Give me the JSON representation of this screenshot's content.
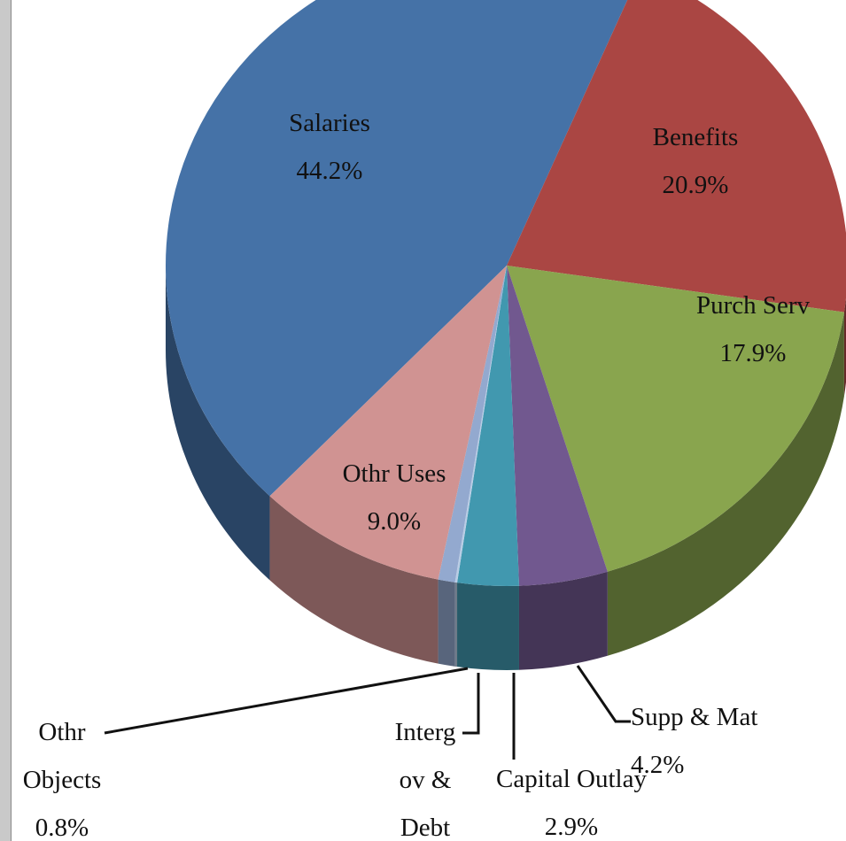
{
  "chart_data": {
    "type": "pie",
    "categories": [
      "Salaries",
      "Benefits",
      "Purch Serv",
      "Supp & Mat",
      "Capital Outlay",
      "Intergov & Debt",
      "Othr Objects",
      "Othr Uses"
    ],
    "values": [
      44.2,
      20.9,
      17.9,
      4.2,
      2.9,
      0.1,
      0.8,
      9.0
    ],
    "value_labels": [
      "44.2%",
      "20.9%",
      "17.9%",
      "4.2%",
      "2.9%",
      null,
      "0.8%",
      "9.0%"
    ],
    "colors": [
      "#4572a7",
      "#aa4643",
      "#89a54e",
      "#71588f",
      "#4198af",
      "#b9cde5",
      "#93a9cf",
      "#d09392"
    ]
  }
}
